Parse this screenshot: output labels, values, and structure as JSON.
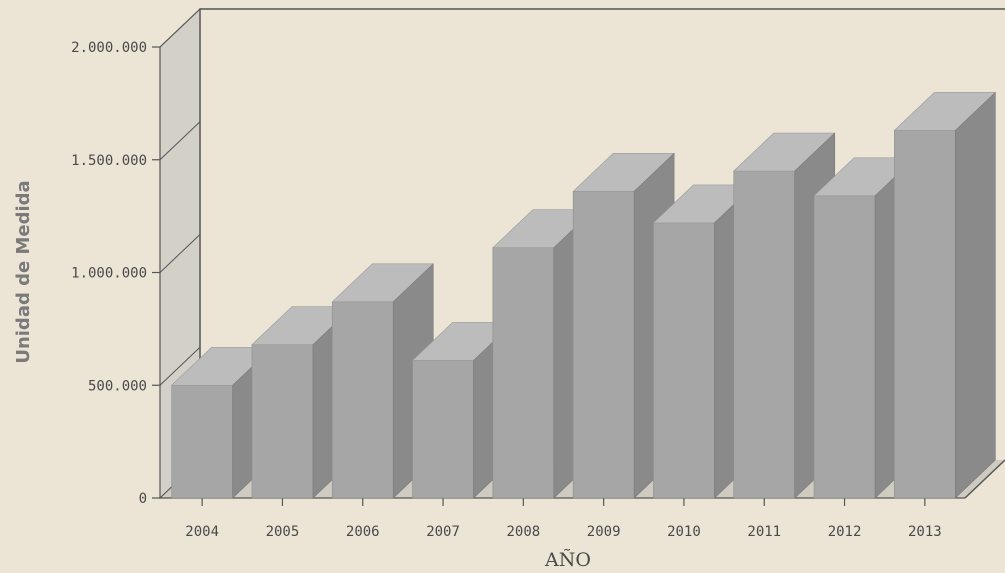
{
  "chart_data": {
    "type": "bar",
    "title": "",
    "xlabel": "AÑO",
    "ylabel": "Unidad de Medida",
    "categories": [
      "2004",
      "2005",
      "2006",
      "2007",
      "2008",
      "2009",
      "2010",
      "2011",
      "2012",
      "2013"
    ],
    "values": [
      500000,
      680000,
      870000,
      610000,
      1110000,
      1360000,
      1220000,
      1450000,
      1340000,
      1630000
    ],
    "ylim": [
      0,
      2000000
    ],
    "yticks": [
      0,
      500000,
      1000000,
      1500000,
      2000000
    ],
    "ytick_labels": [
      "0",
      "500.000",
      "1.000.000",
      "1.500.000",
      "2.000.000"
    ],
    "grid": false,
    "legend": "none",
    "style": "3d",
    "colors": {
      "bar_front": "#a6a6a6",
      "bar_top": "#bcbcbc",
      "bar_side": "#8a8a8a",
      "wall": "#d3d0c8",
      "background": "#ece5d6",
      "axis": "#555555"
    }
  }
}
